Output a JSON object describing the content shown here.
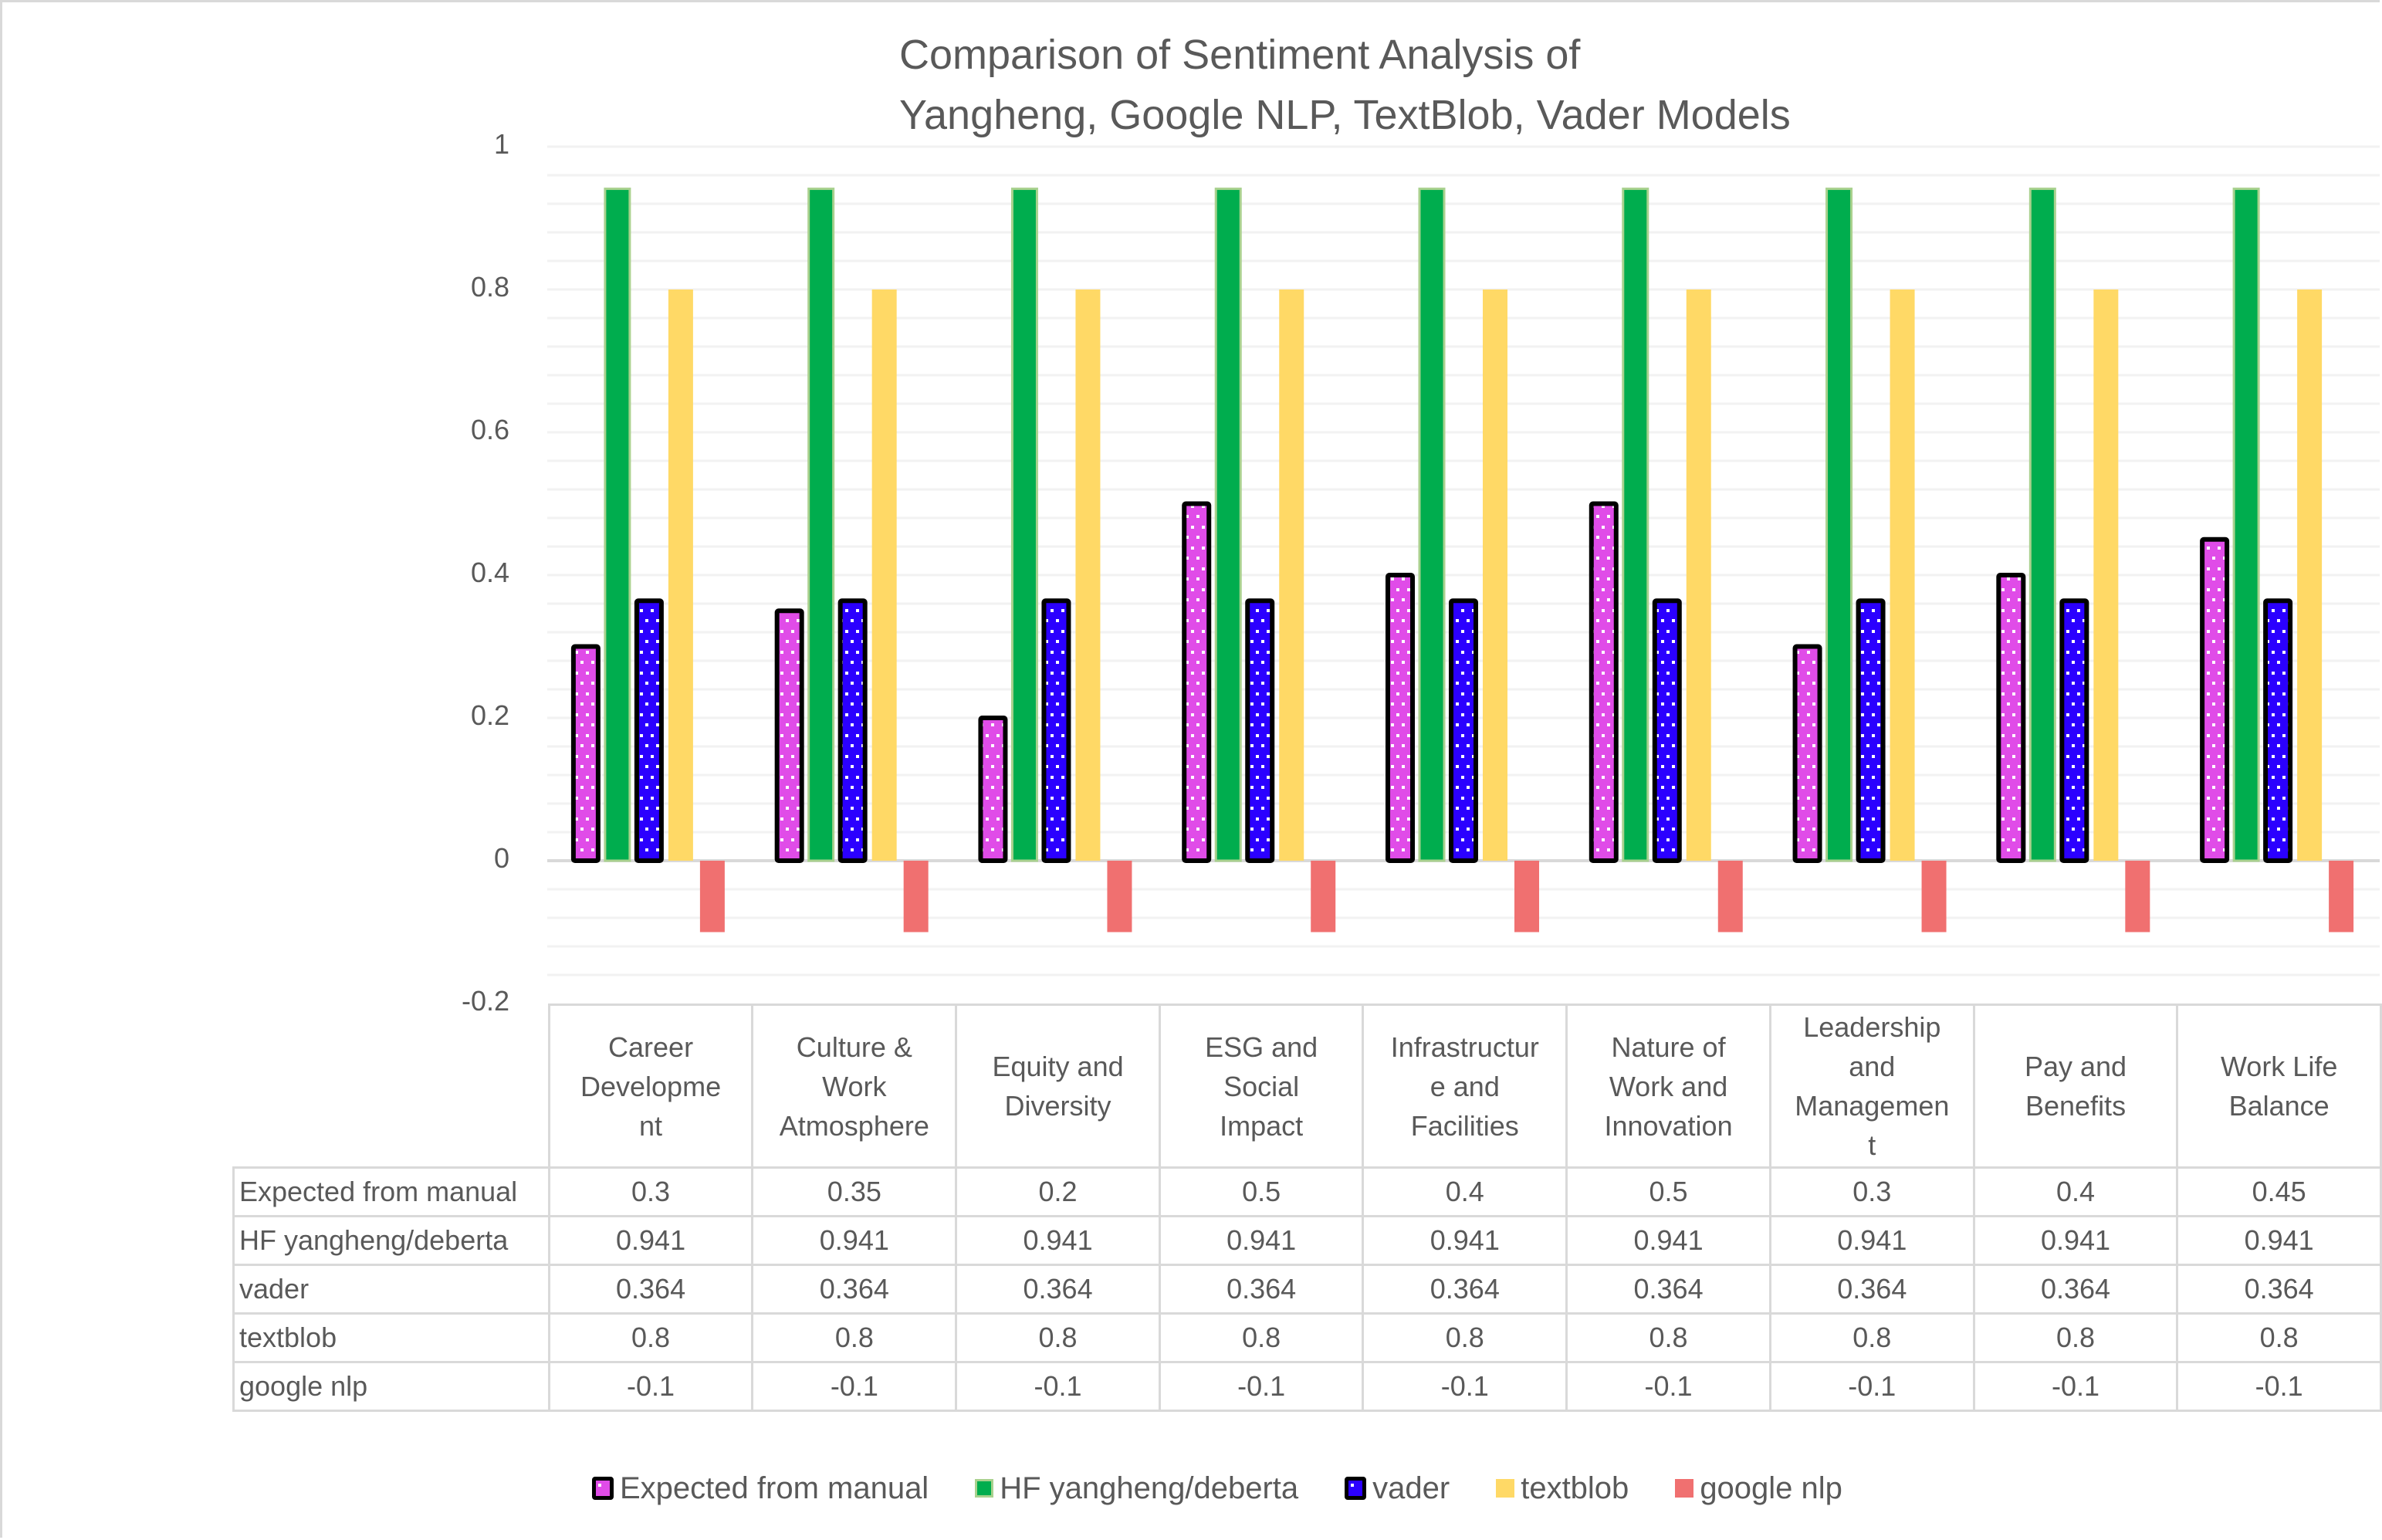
{
  "chart_data": {
    "type": "bar",
    "title": [
      "Comparison of Sentiment Analysis  of",
      "Yangheng, Google NLP, TextBlob, Vader Models"
    ],
    "xlabel": "",
    "ylabel": "",
    "ylim": [
      -0.2,
      1
    ],
    "yticks": [
      1,
      0.8,
      0.6,
      0.4,
      0.2,
      0,
      -0.2
    ],
    "ytick_labels": [
      "1",
      "0.8",
      "0.6",
      "0.4",
      "0.2",
      "0",
      "-0.2"
    ],
    "minor_grid_step": 0.04,
    "grid": true,
    "legend_position": "bottom",
    "data_table": true,
    "categories": [
      "Career Developme nt",
      "Culture & Work Atmosphere",
      "Equity and Diversity",
      "ESG and Social Impact",
      "Infrastructur e and Facilities",
      "Nature of Work and Innovation",
      "Leadership and Managemen t",
      "Pay and Benefits",
      "Work Life Balance"
    ],
    "category_lines": [
      [
        "Career",
        "Developme",
        "nt"
      ],
      [
        "Culture &",
        "Work",
        "Atmosphere"
      ],
      [
        "Equity and",
        "Diversity"
      ],
      [
        "ESG and",
        "Social",
        "Impact"
      ],
      [
        "Infrastructur",
        "e and",
        "Facilities"
      ],
      [
        "Nature of",
        "Work and",
        "Innovation"
      ],
      [
        "Leadership",
        "and",
        "Managemen",
        "t"
      ],
      [
        "Pay and",
        "Benefits"
      ],
      [
        "Work Life",
        "Balance"
      ]
    ],
    "series": [
      {
        "name": "Expected from manual",
        "color": "#e04ce8",
        "pattern": "dots",
        "outline": "#000000",
        "values": [
          0.3,
          0.35,
          0.2,
          0.5,
          0.4,
          0.5,
          0.3,
          0.4,
          0.45
        ],
        "labels": [
          "0.3",
          "0.35",
          "0.2",
          "0.5",
          "0.4",
          "0.5",
          "0.3",
          "0.4",
          "0.45"
        ]
      },
      {
        "name": "HF yangheng/deberta",
        "color": "#00ad4e",
        "pattern": "solid",
        "outline": "#a9d18e",
        "values": [
          0.941,
          0.941,
          0.941,
          0.941,
          0.941,
          0.941,
          0.941,
          0.941,
          0.941
        ],
        "labels": [
          "0.941",
          "0.941",
          "0.941",
          "0.941",
          "0.941",
          "0.941",
          "0.941",
          "0.941",
          "0.941"
        ]
      },
      {
        "name": "vader",
        "color": "#2b00ff",
        "pattern": "dots",
        "outline": "#000000",
        "values": [
          0.364,
          0.364,
          0.364,
          0.364,
          0.364,
          0.364,
          0.364,
          0.364,
          0.364
        ],
        "labels": [
          "0.364",
          "0.364",
          "0.364",
          "0.364",
          "0.364",
          "0.364",
          "0.364",
          "0.364",
          "0.364"
        ]
      },
      {
        "name": "textblob",
        "color": "#ffd966",
        "pattern": "solid",
        "outline": null,
        "values": [
          0.8,
          0.8,
          0.8,
          0.8,
          0.8,
          0.8,
          0.8,
          0.8,
          0.8
        ],
        "labels": [
          "0.8",
          "0.8",
          "0.8",
          "0.8",
          "0.8",
          "0.8",
          "0.8",
          "0.8",
          "0.8"
        ]
      },
      {
        "name": "google nlp",
        "color": "#f07070",
        "pattern": "solid",
        "outline": null,
        "values": [
          -0.1,
          -0.1,
          -0.1,
          -0.1,
          -0.1,
          -0.1,
          -0.1,
          -0.1,
          -0.1
        ],
        "labels": [
          "-0.1",
          "-0.1",
          "-0.1",
          "-0.1",
          "-0.1",
          "-0.1",
          "-0.1",
          "-0.1",
          "-0.1"
        ]
      }
    ]
  }
}
